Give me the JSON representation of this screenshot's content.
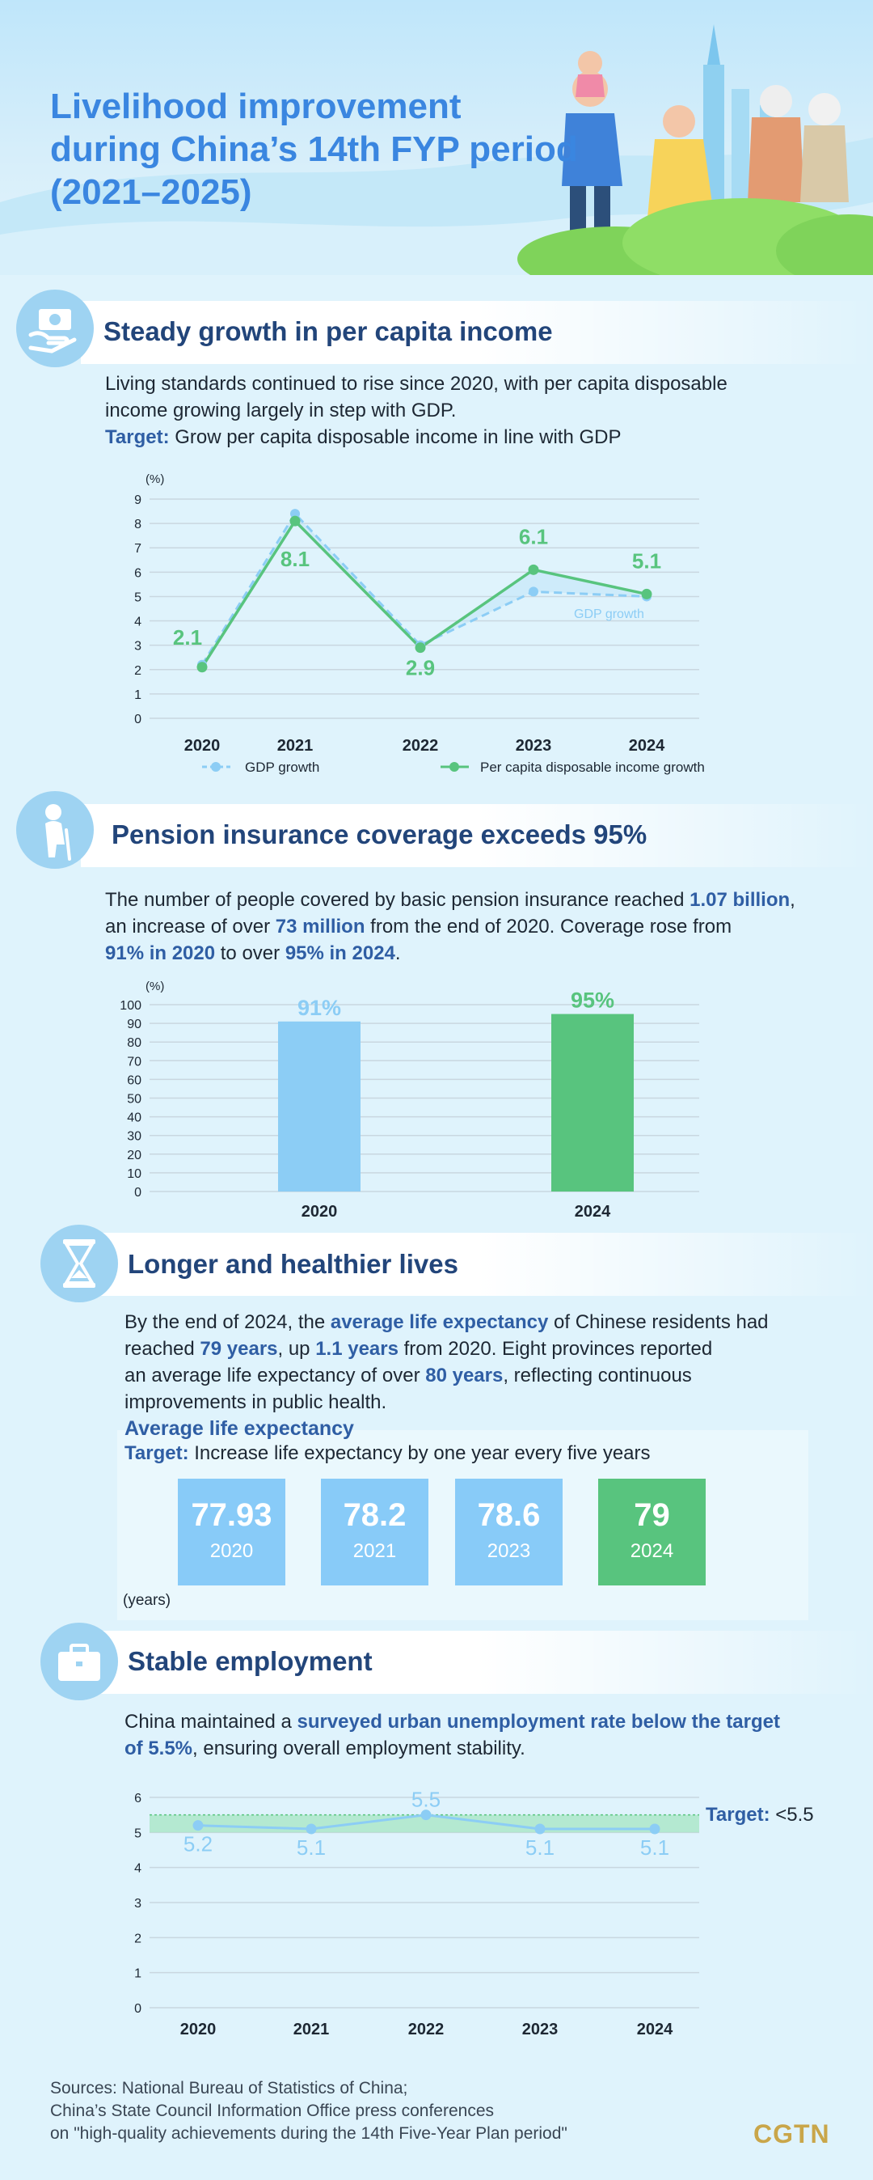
{
  "header": {
    "title_lines": [
      "Livelihood improvement",
      "during China’s 14th FYP period",
      "(2021–2025)"
    ]
  },
  "income": {
    "title": "Steady growth in per capita income",
    "para1": "Living standards continued to rise since 2020, with per capita disposable",
    "para2": "income growing largely in step with GDP.",
    "target_label": "Target:",
    "target_text": " Grow per capita disposable income in line with GDP"
  },
  "pension": {
    "title": "Pension insurance coverage exceeds 95%",
    "p1a": "The number of people covered by basic pension insurance reached ",
    "p1b": "1.07 billion",
    "p1c": ",",
    "p2a": "an increase of over ",
    "p2b": "73 million",
    "p2c": " from the end of 2020. Coverage rose from",
    "p3a": "91% in 2020",
    "p3b": " to over ",
    "p3c": "95% in 2024",
    "p3d": "."
  },
  "life": {
    "title": "Longer and healthier lives",
    "l1a": "By the end of 2024, the ",
    "l1b": "average life expectancy",
    "l1c": " of Chinese residents had",
    "l2a": "reached ",
    "l2b": "79 years",
    "l2c": ", up ",
    "l2d": "1.1 years",
    "l2e": " from 2020. Eight provinces reported",
    "l3a": "an average life expectancy of over ",
    "l3b": "80 years",
    "l3c": ", reflecting continuous",
    "l4": "improvements in public health.",
    "sub_title": "Average life expectancy",
    "target_label": "Target:",
    "target_text": " Increase life expectancy by one year every five years",
    "unit": "(years)",
    "cards": [
      {
        "value": "77.93",
        "year": "2020"
      },
      {
        "value": "78.2",
        "year": "2021"
      },
      {
        "value": "78.6",
        "year": "2023"
      },
      {
        "value": "79",
        "year": "2024"
      }
    ]
  },
  "employment": {
    "title": "Stable employment",
    "e1a": "China maintained a ",
    "e1b": "surveyed urban unemployment rate below the target",
    "e2a": "of 5.5%",
    "e2b": ", ensuring overall employment stability.",
    "target_label": "Target:",
    "target_text": " <5.5"
  },
  "footer": {
    "line1": "Sources: National Bureau of Statistics of China;",
    "line2": "China’s State Council Information Office press conferences",
    "line3": "on \"high-quality achievements during the 14th Five-Year Plan period\"",
    "brand": "CGTN"
  },
  "colors": {
    "gdp": "#8ccdf5",
    "income": "#58c47e",
    "title_blue": "#3a86e0",
    "navy": "#22457a"
  },
  "chart_data": [
    {
      "type": "line",
      "title": "Steady growth in per capita income",
      "ylabel": "(%)",
      "ylim": [
        0,
        9
      ],
      "yticks": [
        0,
        1,
        2,
        3,
        4,
        5,
        6,
        7,
        8,
        9
      ],
      "categories": [
        "2020",
        "2021",
        "2022",
        "2023",
        "2024"
      ],
      "series": [
        {
          "name": "GDP growth",
          "values": [
            2.2,
            8.4,
            3.0,
            5.2,
            5.0
          ],
          "style": "dashed"
        },
        {
          "name": "Per capita disposable income growth",
          "values": [
            2.1,
            8.1,
            2.9,
            6.1,
            5.1
          ],
          "labels": [
            "2.1",
            "8.1",
            "2.9",
            "6.1",
            "5.1"
          ]
        }
      ],
      "annotations": [
        "GDP growth"
      ],
      "legend": [
        "GDP growth",
        "Per capita disposable income growth"
      ],
      "legend_position": "bottom"
    },
    {
      "type": "bar",
      "title": "Pension insurance coverage",
      "ylabel": "(%)",
      "ylim": [
        0,
        100
      ],
      "yticks": [
        0,
        10,
        20,
        30,
        40,
        50,
        60,
        70,
        80,
        90,
        100
      ],
      "categories": [
        "2020",
        "2024"
      ],
      "values": [
        91,
        95
      ],
      "labels": [
        "91%",
        "95%"
      ]
    },
    {
      "type": "line",
      "title": "Surveyed urban unemployment rate",
      "ylim": [
        0,
        6
      ],
      "yticks": [
        0,
        1,
        2,
        3,
        4,
        5,
        6
      ],
      "categories": [
        "2020",
        "2021",
        "2022",
        "2023",
        "2024"
      ],
      "values": [
        5.2,
        5.1,
        5.5,
        5.1,
        5.1
      ],
      "labels": [
        "5.2",
        "5.1",
        "5.5",
        "5.1",
        "5.1"
      ],
      "target_band": [
        5.0,
        5.5
      ]
    }
  ]
}
